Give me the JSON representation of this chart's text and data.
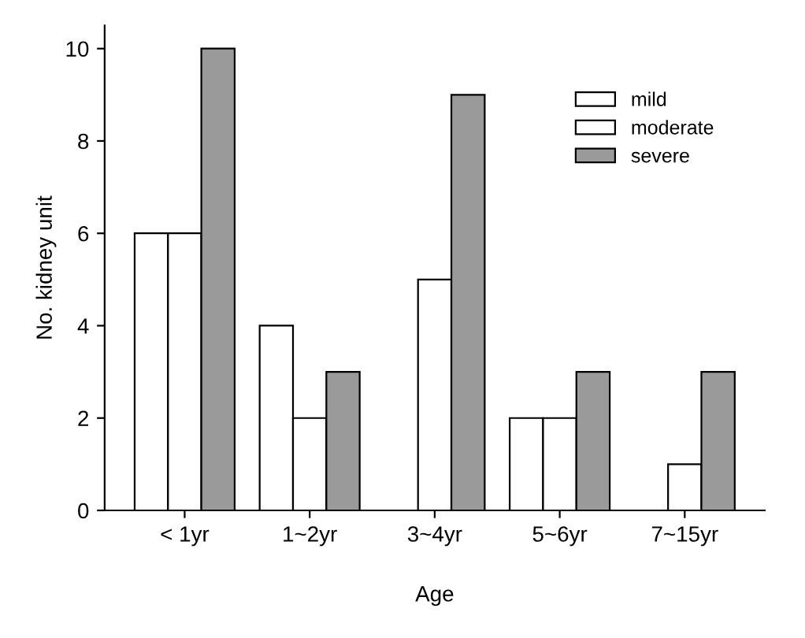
{
  "chart_data": {
    "type": "bar",
    "xlabel": "Age",
    "ylabel": "No. kidney unit",
    "categories": [
      "< 1yr",
      "1~2yr",
      "3~4yr",
      "5~6yr",
      "7~15yr"
    ],
    "series": [
      {
        "name": "mild",
        "color": "#ffffff",
        "values": [
          6,
          4,
          0,
          2,
          0
        ]
      },
      {
        "name": "moderate",
        "color": "#ffffff",
        "values": [
          6,
          2,
          5,
          2,
          1
        ]
      },
      {
        "name": "severe",
        "color": "#9a9a9a",
        "values": [
          10,
          3,
          9,
          3,
          3
        ]
      }
    ],
    "ylim": [
      0,
      10.5
    ],
    "yticks": [
      0,
      2,
      4,
      6,
      8,
      10
    ],
    "grid": false,
    "legend": "top right"
  }
}
